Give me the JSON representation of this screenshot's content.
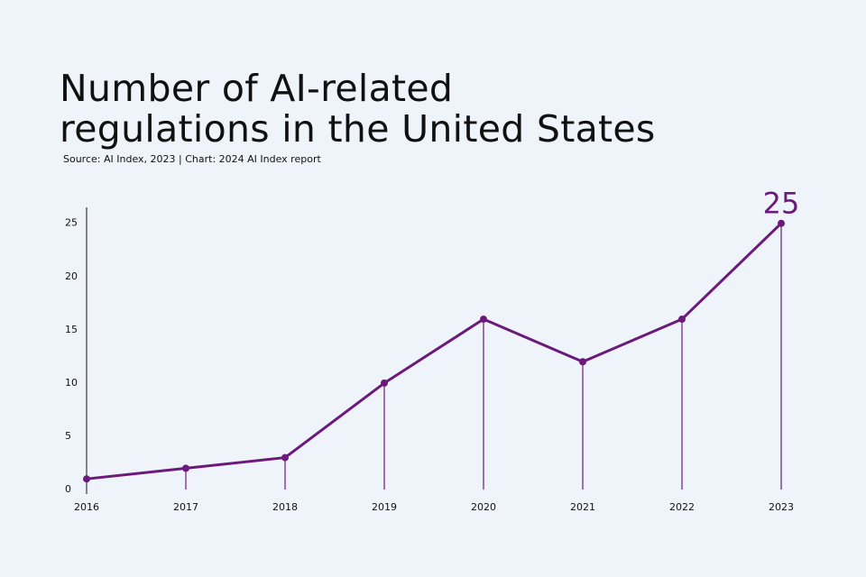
{
  "chart_data": {
    "type": "line",
    "title": "Number of AI-related regulations in the United States",
    "subtitle": "Source: AI Index, 2023 | Chart: 2024 AI Index report",
    "x": [
      2016,
      2017,
      2018,
      2019,
      2020,
      2021,
      2022,
      2023
    ],
    "xlim": [
      2016,
      2023
    ],
    "xticks": [
      2016,
      2017,
      2018,
      2019,
      2020,
      2021,
      2022,
      2023
    ],
    "series": [
      {
        "color": "#6b1a7b",
        "values": [
          1,
          2,
          3,
          10,
          16,
          12,
          16,
          25
        ]
      }
    ],
    "ylim": [
      0,
      26.5
    ],
    "yticks": [
      0,
      5,
      10,
      15,
      20,
      25
    ],
    "grid": false
  }
}
